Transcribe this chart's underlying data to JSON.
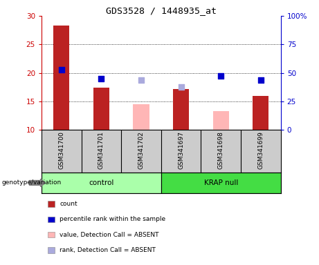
{
  "title": "GDS3528 / 1448935_at",
  "samples": [
    "GSM341700",
    "GSM341701",
    "GSM341702",
    "GSM341697",
    "GSM341698",
    "GSM341699"
  ],
  "bar_values": [
    28.3,
    17.4,
    null,
    17.2,
    null,
    16.0
  ],
  "bar_colors_present": "#bb2222",
  "bar_colors_absent": "#ffb6b6",
  "absent_bar_values": [
    null,
    null,
    14.5,
    null,
    13.3,
    null
  ],
  "blue_squares_present": [
    20.5,
    19.0,
    null,
    null,
    19.5,
    18.8
  ],
  "blue_squares_absent": [
    null,
    null,
    18.7,
    17.5,
    null,
    null
  ],
  "blue_color_present": "#0000cc",
  "blue_color_absent": "#aaaadd",
  "ylim_left": [
    10,
    30
  ],
  "ylim_right": [
    0,
    100
  ],
  "yticks_left": [
    10,
    15,
    20,
    25,
    30
  ],
  "yticks_right": [
    0,
    25,
    50,
    75,
    100
  ],
  "ytick_labels_right": [
    "0",
    "25",
    "50",
    "75",
    "100%"
  ],
  "left_axis_color": "#cc0000",
  "right_axis_color": "#0000cc",
  "bg_label_row": "#cccccc",
  "bg_group_control": "#aaffaa",
  "bg_group_krap": "#44dd44",
  "legend_items": [
    {
      "label": "count",
      "color": "#bb2222"
    },
    {
      "label": "percentile rank within the sample",
      "color": "#0000cc"
    },
    {
      "label": "value, Detection Call = ABSENT",
      "color": "#ffb6b6"
    },
    {
      "label": "rank, Detection Call = ABSENT",
      "color": "#aaaadd"
    }
  ]
}
